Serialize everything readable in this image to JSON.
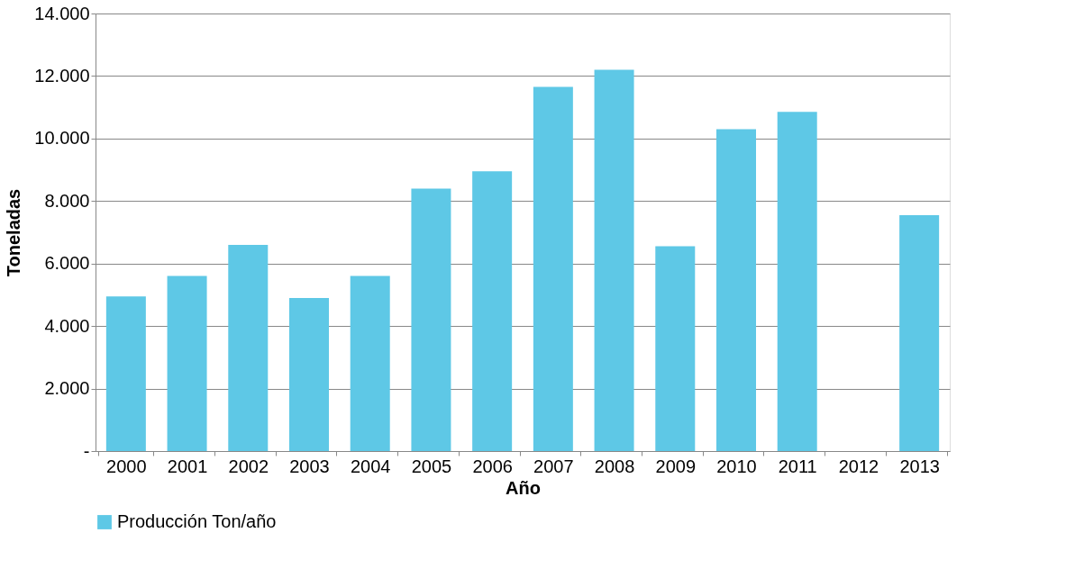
{
  "chart_data": {
    "type": "bar",
    "xlabel": "Año",
    "ylabel": "Toneladas",
    "categories": [
      "2000",
      "2001",
      "2002",
      "2003",
      "2004",
      "2005",
      "2006",
      "2007",
      "2008",
      "2009",
      "2010",
      "2011",
      "2012",
      "2013"
    ],
    "series": [
      {
        "name": "Producción Ton/año",
        "color": "#5ec8e6",
        "values": [
          4950,
          5600,
          6600,
          4900,
          5600,
          8400,
          8950,
          11650,
          12200,
          6550,
          10300,
          10850,
          null,
          7550
        ]
      }
    ],
    "ylim": [
      0,
      14000
    ],
    "yticks": [
      {
        "value": 0,
        "label": "-"
      },
      {
        "value": 2000,
        "label": "2.000"
      },
      {
        "value": 4000,
        "label": "4.000"
      },
      {
        "value": 6000,
        "label": "6.000"
      },
      {
        "value": 8000,
        "label": "8.000"
      },
      {
        "value": 10000,
        "label": "10.000"
      },
      {
        "value": 12000,
        "label": "12.000"
      },
      {
        "value": 14000,
        "label": "14.000"
      }
    ],
    "grid": "y",
    "legend": "bottom"
  }
}
